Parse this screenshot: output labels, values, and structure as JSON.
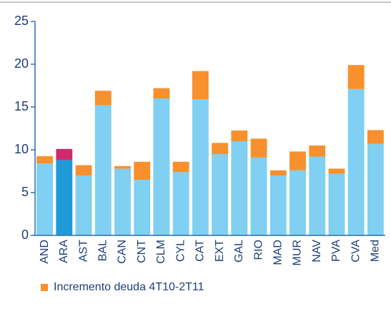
{
  "chart_data": {
    "type": "stacked_bar",
    "categories": [
      "AND",
      "ARA",
      "AST",
      "BAL",
      "CAN",
      "CNT",
      "CLM",
      "CYL",
      "CAT",
      "EXT",
      "GAL",
      "RIO",
      "MAD",
      "MUR",
      "NAV",
      "PVA",
      "CVA",
      "Med"
    ],
    "series": [
      {
        "color": "#7fd0f2",
        "colors": [
          "#7fd0f2",
          "#1f9ad9",
          "#7fd0f2",
          "#7fd0f2",
          "#7fd0f2",
          "#7fd0f2",
          "#7fd0f2",
          "#7fd0f2",
          "#7fd0f2",
          "#7fd0f2",
          "#7fd0f2",
          "#7fd0f2",
          "#7fd0f2",
          "#7fd0f2",
          "#7fd0f2",
          "#7fd0f2",
          "#7fd0f2",
          "#7fd0f2"
        ],
        "values": [
          8.4,
          8.8,
          7.0,
          15.2,
          7.8,
          6.5,
          16.0,
          7.4,
          15.9,
          9.5,
          11.0,
          9.1,
          7.0,
          7.6,
          9.2,
          7.2,
          17.1,
          10.7
        ]
      },
      {
        "name": "Incremento deuda 4T10-2T11",
        "color": "#f7902d",
        "colors": [
          "#f7902d",
          "#cf2a6c",
          "#f7902d",
          "#f7902d",
          "#f7902d",
          "#f7902d",
          "#f7902d",
          "#f7902d",
          "#f7902d",
          "#f7902d",
          "#f7902d",
          "#f7902d",
          "#f7902d",
          "#f7902d",
          "#f7902d",
          "#f7902d",
          "#f7902d",
          "#f7902d"
        ],
        "values": [
          0.85,
          1.3,
          1.2,
          1.7,
          0.3,
          2.1,
          1.2,
          1.2,
          3.3,
          1.3,
          1.25,
          2.2,
          0.6,
          2.2,
          1.3,
          0.6,
          2.8,
          1.6
        ]
      }
    ],
    "ylim": [
      0,
      25
    ],
    "yticks": [
      0,
      5,
      10,
      15,
      20,
      25
    ],
    "legend": "bottom-left"
  }
}
